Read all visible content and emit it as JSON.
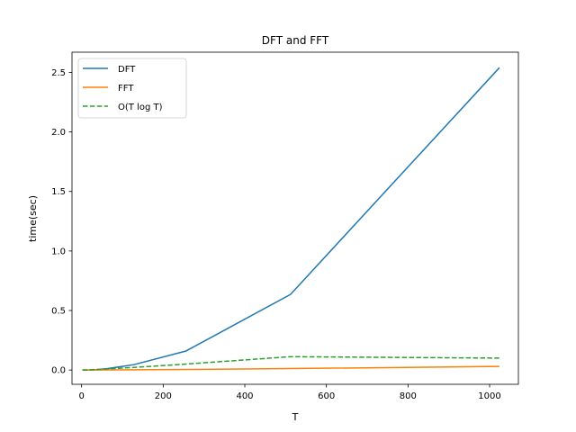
{
  "chart_data": {
    "type": "line",
    "title": "DFT and FFT",
    "xlabel": "T",
    "ylabel": "time(sec)",
    "xlim": [
      -23.55,
      1070.55
    ],
    "ylim": [
      -0.12,
      2.67
    ],
    "xticks": [
      0,
      200,
      400,
      600,
      800,
      1000
    ],
    "xtick_labels": [
      "0",
      "200",
      "400",
      "600",
      "800",
      "1000"
    ],
    "yticks": [
      0.0,
      0.5,
      1.0,
      1.5,
      2.0,
      2.5
    ],
    "ytick_labels": [
      "0.0",
      "0.5",
      "1.0",
      "1.5",
      "2.0",
      "2.5"
    ],
    "grid": false,
    "legend_position": "top-left",
    "x": [
      2,
      4,
      8,
      16,
      32,
      64,
      128,
      256,
      512,
      1024
    ],
    "series": [
      {
        "name": "DFT",
        "color": "#1f77b4",
        "style": "solid",
        "values": [
          0.0,
          0.0,
          0.0,
          0.0,
          0.001,
          0.012,
          0.045,
          0.16,
          0.635,
          2.54
        ]
      },
      {
        "name": "FFT",
        "color": "#ff7f0e",
        "style": "solid",
        "values": [
          0.0,
          0.0,
          0.0,
          0.0,
          0.0,
          0.001,
          0.002,
          0.005,
          0.012,
          0.03
        ]
      },
      {
        "name": "O(T log T)",
        "color": "#2ca02c",
        "style": "dashed",
        "values": [
          0.0001,
          0.0002,
          0.0006,
          0.0016,
          0.0039,
          0.0094,
          0.022,
          0.05,
          0.112,
          0.1
        ]
      }
    ]
  }
}
